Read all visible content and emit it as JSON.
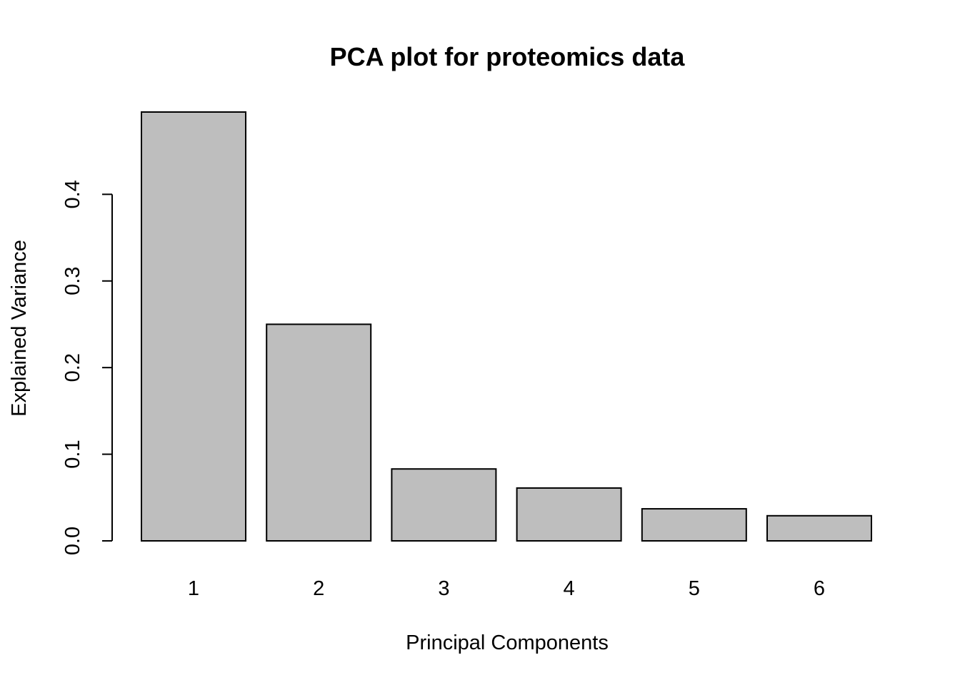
{
  "chart_data": {
    "type": "bar",
    "title": "PCA plot for proteomics data",
    "xlabel": "Principal Components",
    "ylabel": "Explained Variance",
    "categories": [
      "1",
      "2",
      "3",
      "4",
      "5",
      "6"
    ],
    "values": [
      0.495,
      0.25,
      0.083,
      0.061,
      0.037,
      0.029
    ],
    "yticks": [
      0.0,
      0.1,
      0.2,
      0.3,
      0.4
    ],
    "ytick_labels": [
      "0.0",
      "0.1",
      "0.2",
      "0.3",
      "0.4"
    ],
    "ylim": [
      0,
      0.495
    ],
    "bar_color": "#bebebe",
    "grid": false,
    "legend": "none"
  }
}
